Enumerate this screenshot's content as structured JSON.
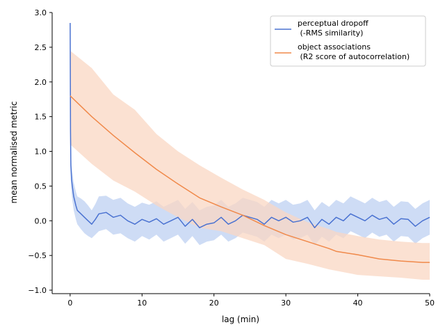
{
  "chart_data": {
    "type": "line",
    "title": "",
    "xlabel": "lag (min)",
    "ylabel": "mean normalised metric",
    "xlim": [
      -2.5,
      50
    ],
    "ylim": [
      -1.05,
      3.0
    ],
    "xticks": [
      0,
      10,
      20,
      30,
      40,
      50
    ],
    "yticks": [
      -1.0,
      -0.5,
      0.0,
      0.5,
      1.0,
      1.5,
      2.0,
      2.5,
      3.0
    ],
    "ytick_labels": [
      "−1.0",
      "−0.5",
      "0.0",
      "0.5",
      "1.0",
      "1.5",
      "2.0",
      "2.5",
      "3.0"
    ],
    "grid": false,
    "legend_position": "top-right",
    "series": [
      {
        "name": "perceptual dropoff\n (-RMS similarity)",
        "color": "#4a72d1",
        "band_color": "#aec4ef",
        "x": [
          0,
          0.05,
          0.1,
          0.2,
          0.3,
          0.5,
          0.8,
          1,
          1.5,
          2,
          2.5,
          3,
          3.5,
          4,
          5,
          6,
          7,
          8,
          9,
          10,
          11,
          12,
          13,
          14,
          15,
          16,
          17,
          18,
          19,
          20,
          21,
          22,
          23,
          24,
          25,
          26,
          27,
          28,
          29,
          30,
          31,
          32,
          33,
          34,
          35,
          36,
          37,
          38,
          39,
          40,
          41,
          42,
          43,
          44,
          45,
          46,
          47,
          48,
          49,
          50
        ],
        "y": [
          2.85,
          1.3,
          0.8,
          0.6,
          0.5,
          0.35,
          0.22,
          0.15,
          0.1,
          0.05,
          0.0,
          -0.05,
          0.02,
          0.1,
          0.12,
          0.05,
          0.08,
          0.0,
          -0.05,
          0.02,
          -0.02,
          0.03,
          -0.05,
          0.0,
          0.05,
          -0.08,
          0.02,
          -0.1,
          -0.05,
          -0.03,
          0.05,
          -0.05,
          0.0,
          0.08,
          0.05,
          0.02,
          -0.05,
          0.05,
          0.0,
          0.05,
          -0.02,
          0.0,
          0.05,
          -0.1,
          0.02,
          -0.05,
          0.05,
          0.0,
          0.1,
          0.05,
          0.0,
          0.08,
          0.02,
          0.05,
          -0.05,
          0.03,
          0.02,
          -0.08,
          0.0,
          0.05
        ],
        "lower": [
          2.85,
          1.0,
          0.6,
          0.4,
          0.3,
          0.15,
          0.02,
          -0.05,
          -0.12,
          -0.18,
          -0.22,
          -0.25,
          -0.2,
          -0.15,
          -0.12,
          -0.2,
          -0.18,
          -0.25,
          -0.3,
          -0.22,
          -0.27,
          -0.2,
          -0.3,
          -0.25,
          -0.2,
          -0.33,
          -0.22,
          -0.35,
          -0.3,
          -0.28,
          -0.2,
          -0.3,
          -0.25,
          -0.17,
          -0.2,
          -0.23,
          -0.3,
          -0.2,
          -0.25,
          -0.2,
          -0.27,
          -0.25,
          -0.2,
          -0.35,
          -0.23,
          -0.3,
          -0.2,
          -0.25,
          -0.15,
          -0.2,
          -0.25,
          -0.17,
          -0.23,
          -0.2,
          -0.3,
          -0.22,
          -0.23,
          -0.33,
          -0.25,
          -0.2
        ],
        "upper": [
          2.85,
          1.6,
          1.0,
          0.8,
          0.7,
          0.55,
          0.42,
          0.35,
          0.32,
          0.28,
          0.22,
          0.15,
          0.24,
          0.35,
          0.36,
          0.3,
          0.33,
          0.25,
          0.2,
          0.26,
          0.23,
          0.28,
          0.2,
          0.25,
          0.3,
          0.17,
          0.27,
          0.15,
          0.2,
          0.22,
          0.3,
          0.2,
          0.25,
          0.33,
          0.3,
          0.27,
          0.2,
          0.3,
          0.25,
          0.3,
          0.23,
          0.25,
          0.3,
          0.15,
          0.27,
          0.2,
          0.3,
          0.25,
          0.35,
          0.3,
          0.25,
          0.33,
          0.27,
          0.3,
          0.2,
          0.28,
          0.27,
          0.17,
          0.25,
          0.3
        ]
      },
      {
        "name": "object associations\n (R2 score of autocorrelation)",
        "color": "#f0894a",
        "band_color": "#f9d7c3",
        "x": [
          0,
          3,
          6,
          9,
          12,
          15,
          18,
          21,
          24,
          27,
          30,
          33,
          36,
          37,
          40,
          43,
          46,
          49,
          50
        ],
        "y": [
          1.8,
          1.5,
          1.23,
          0.98,
          0.74,
          0.53,
          0.33,
          0.2,
          0.08,
          -0.07,
          -0.2,
          -0.3,
          -0.4,
          -0.44,
          -0.49,
          -0.55,
          -0.58,
          -0.6,
          -0.6
        ],
        "lower": [
          1.1,
          0.82,
          0.58,
          0.42,
          0.22,
          0.05,
          -0.1,
          -0.15,
          -0.25,
          -0.35,
          -0.55,
          -0.62,
          -0.7,
          -0.72,
          -0.78,
          -0.8,
          -0.82,
          -0.85,
          -0.85
        ],
        "upper": [
          2.45,
          2.2,
          1.82,
          1.6,
          1.25,
          1.0,
          0.8,
          0.62,
          0.45,
          0.3,
          0.12,
          -0.02,
          -0.12,
          -0.16,
          -0.22,
          -0.27,
          -0.3,
          -0.32,
          -0.32
        ]
      }
    ]
  }
}
